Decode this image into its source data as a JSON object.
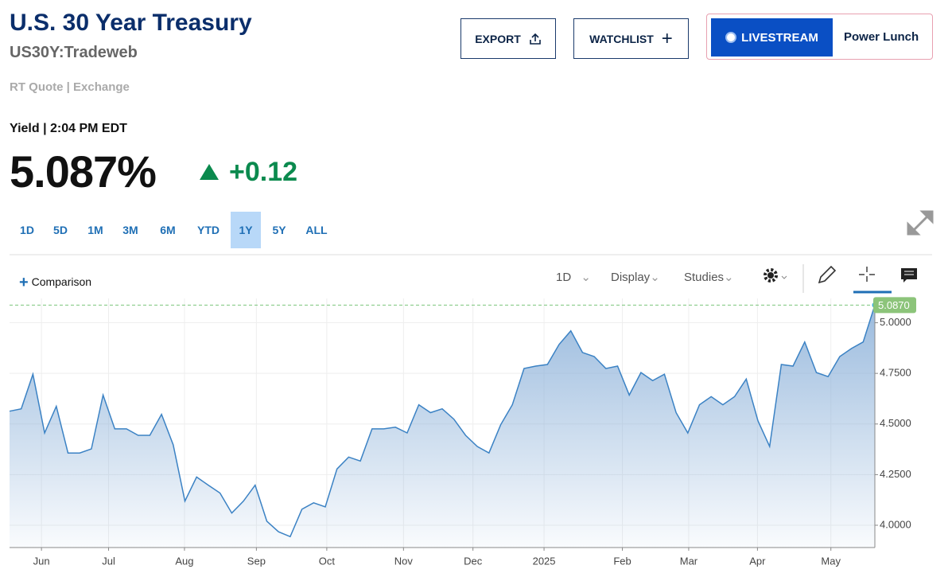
{
  "header": {
    "title": "U.S. 30 Year Treasury",
    "symbol": "US30Y:Tradeweb",
    "quote_source": "RT Quote | Exchange",
    "buttons": {
      "export": "EXPORT",
      "watchlist": "WATCHLIST",
      "livestream": "LIVESTREAM",
      "show": "Power Lunch"
    }
  },
  "quote": {
    "label": "Yield | 2:04 PM EDT",
    "price": "5.087%",
    "change": "+0.12"
  },
  "ranges": [
    "1D",
    "5D",
    "1M",
    "3M",
    "6M",
    "YTD",
    "1Y",
    "5Y",
    "ALL"
  ],
  "active_range": "1Y",
  "toolbar": {
    "comparison": "Comparison",
    "interval": "1D",
    "display": "Display",
    "studies": "Studies"
  },
  "chart_data": {
    "type": "area",
    "color": "#3b82c4",
    "values": [
      4.563,
      4.575,
      4.746,
      4.456,
      4.587,
      4.357,
      4.357,
      4.377,
      4.643,
      4.476,
      4.476,
      4.444,
      4.444,
      4.548,
      4.397,
      4.119,
      4.238,
      4.198,
      4.159,
      4.06,
      4.119,
      4.198,
      4.02,
      3.968,
      3.944,
      4.079,
      4.111,
      4.091,
      4.278,
      4.337,
      4.317,
      4.476,
      4.476,
      4.484,
      4.456,
      4.595,
      4.556,
      4.575,
      4.524,
      4.444,
      4.389,
      4.357,
      4.496,
      4.595,
      4.774,
      4.786,
      4.794,
      4.893,
      4.96,
      4.853,
      4.833,
      4.774,
      4.786,
      4.643,
      4.754,
      4.714,
      4.746,
      4.556,
      4.456,
      4.595,
      4.635,
      4.595,
      4.635,
      4.722,
      4.516,
      4.389,
      4.794,
      4.786,
      4.905,
      4.754,
      4.734,
      4.833,
      4.873,
      4.905,
      5.087
    ],
    "xlim": [
      0,
      74
    ],
    "xticks": [
      {
        "value": 2.73,
        "label": "Jun"
      },
      {
        "value": 8.47,
        "label": "Jul"
      },
      {
        "value": 14.96,
        "label": "Aug"
      },
      {
        "value": 21.11,
        "label": "Sep"
      },
      {
        "value": 27.13,
        "label": "Oct"
      },
      {
        "value": 33.69,
        "label": "Nov"
      },
      {
        "value": 39.63,
        "label": "Dec"
      },
      {
        "value": 45.71,
        "label": "2025"
      },
      {
        "value": 52.41,
        "label": "Feb"
      },
      {
        "value": 58.08,
        "label": "Mar"
      },
      {
        "value": 63.96,
        "label": "Apr"
      },
      {
        "value": 70.24,
        "label": "May"
      }
    ],
    "ylim": [
      3.89,
      5.12
    ],
    "yticks": [
      {
        "value": 4,
        "label": "4.0000"
      },
      {
        "value": 4.25,
        "label": "4.2500"
      },
      {
        "value": 4.5,
        "label": "4.5000"
      },
      {
        "value": 4.75,
        "label": "4.7500"
      },
      {
        "value": 5,
        "label": "5.0000"
      }
    ],
    "current": {
      "value": 5.087,
      "label": "5.0870"
    },
    "grid": true
  }
}
